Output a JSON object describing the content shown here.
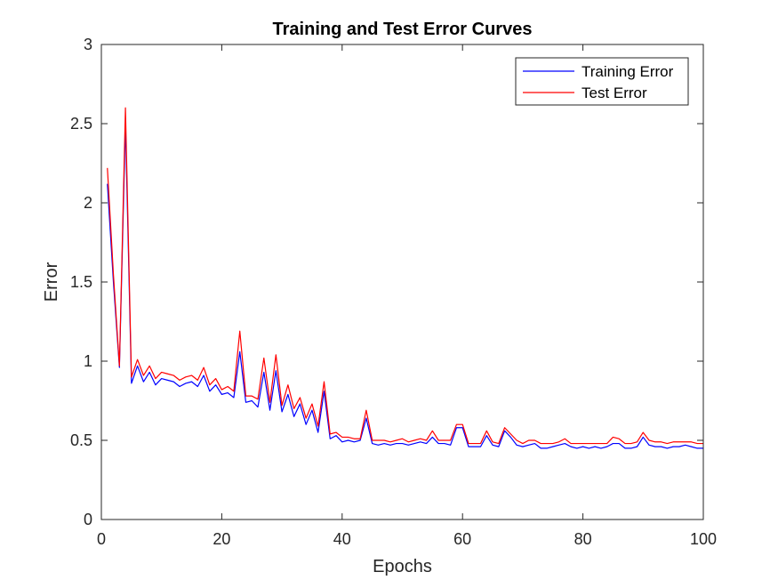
{
  "chart_data": {
    "type": "line",
    "title": "Training and Test Error Curves",
    "xlabel": "Epochs",
    "ylabel": "Error",
    "xlim": [
      0,
      100
    ],
    "ylim": [
      0,
      3
    ],
    "xticks": [
      0,
      20,
      40,
      60,
      80,
      100
    ],
    "xtick_labels": [
      "0",
      "20",
      "40",
      "60",
      "80",
      "100"
    ],
    "yticks": [
      0,
      0.5,
      1,
      1.5,
      2,
      2.5,
      3
    ],
    "ytick_labels": [
      "0",
      "0.5",
      "1",
      "1.5",
      "2",
      "2.5",
      "3"
    ],
    "grid": false,
    "legend_position": "top-right",
    "x": [
      1,
      2,
      3,
      4,
      5,
      6,
      7,
      8,
      9,
      10,
      11,
      12,
      13,
      14,
      15,
      16,
      17,
      18,
      19,
      20,
      21,
      22,
      23,
      24,
      25,
      26,
      27,
      28,
      29,
      30,
      31,
      32,
      33,
      34,
      35,
      36,
      37,
      38,
      39,
      40,
      41,
      42,
      43,
      44,
      45,
      46,
      47,
      48,
      49,
      50,
      51,
      52,
      53,
      54,
      55,
      56,
      57,
      58,
      59,
      60,
      61,
      62,
      63,
      64,
      65,
      66,
      67,
      68,
      69,
      70,
      71,
      72,
      73,
      74,
      75,
      76,
      77,
      78,
      79,
      80,
      81,
      82,
      83,
      84,
      85,
      86,
      87,
      88,
      89,
      90,
      91,
      92,
      93,
      94,
      95,
      96,
      97,
      98,
      99,
      100
    ],
    "series": [
      {
        "name": "Training Error",
        "color": "#0000ff",
        "values": [
          2.12,
          1.5,
          0.96,
          2.5,
          0.86,
          0.97,
          0.87,
          0.93,
          0.85,
          0.89,
          0.88,
          0.87,
          0.84,
          0.86,
          0.87,
          0.84,
          0.91,
          0.81,
          0.85,
          0.79,
          0.8,
          0.77,
          1.06,
          0.74,
          0.75,
          0.71,
          0.93,
          0.69,
          0.94,
          0.68,
          0.79,
          0.65,
          0.73,
          0.6,
          0.69,
          0.55,
          0.81,
          0.51,
          0.53,
          0.49,
          0.5,
          0.49,
          0.5,
          0.64,
          0.48,
          0.47,
          0.48,
          0.47,
          0.48,
          0.48,
          0.47,
          0.48,
          0.49,
          0.48,
          0.52,
          0.48,
          0.48,
          0.47,
          0.58,
          0.58,
          0.46,
          0.46,
          0.46,
          0.53,
          0.47,
          0.46,
          0.56,
          0.52,
          0.47,
          0.46,
          0.47,
          0.48,
          0.45,
          0.45,
          0.46,
          0.47,
          0.48,
          0.46,
          0.45,
          0.46,
          0.45,
          0.46,
          0.45,
          0.46,
          0.48,
          0.48,
          0.45,
          0.45,
          0.46,
          0.52,
          0.47,
          0.46,
          0.46,
          0.45,
          0.46,
          0.46,
          0.47,
          0.46,
          0.45,
          0.45
        ]
      },
      {
        "name": "Test Error",
        "color": "#ff0000",
        "values": [
          2.22,
          1.55,
          0.97,
          2.6,
          0.9,
          1.01,
          0.91,
          0.97,
          0.89,
          0.93,
          0.92,
          0.91,
          0.88,
          0.9,
          0.91,
          0.88,
          0.96,
          0.85,
          0.89,
          0.82,
          0.84,
          0.81,
          1.19,
          0.78,
          0.78,
          0.76,
          1.02,
          0.74,
          1.04,
          0.72,
          0.85,
          0.7,
          0.77,
          0.64,
          0.73,
          0.59,
          0.87,
          0.54,
          0.55,
          0.52,
          0.52,
          0.51,
          0.51,
          0.69,
          0.5,
          0.5,
          0.5,
          0.49,
          0.5,
          0.51,
          0.49,
          0.5,
          0.51,
          0.5,
          0.56,
          0.5,
          0.5,
          0.5,
          0.6,
          0.6,
          0.48,
          0.48,
          0.48,
          0.56,
          0.49,
          0.48,
          0.58,
          0.54,
          0.5,
          0.48,
          0.5,
          0.5,
          0.48,
          0.48,
          0.48,
          0.49,
          0.51,
          0.48,
          0.48,
          0.48,
          0.48,
          0.48,
          0.48,
          0.48,
          0.52,
          0.51,
          0.48,
          0.48,
          0.49,
          0.55,
          0.5,
          0.49,
          0.49,
          0.48,
          0.49,
          0.49,
          0.49,
          0.49,
          0.48,
          0.48
        ]
      }
    ]
  }
}
